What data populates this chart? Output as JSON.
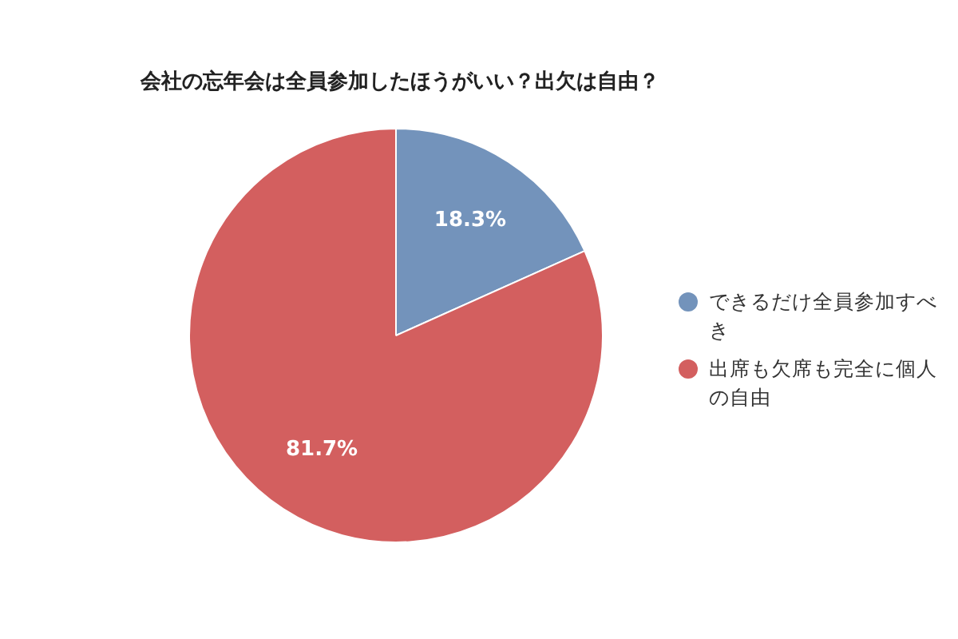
{
  "chart_data": {
    "type": "pie",
    "title": "会社の忘年会は全員参加したほうがいい？出欠は自由？",
    "categories": [
      "できるだけ全員参加すべき",
      "出席も欠席も完全に個人の自由"
    ],
    "values": [
      18.3,
      81.7
    ],
    "colors": [
      "#7393bb",
      "#d35f5f"
    ],
    "value_labels": [
      "18.3%",
      "81.7%"
    ],
    "legend": "right"
  }
}
